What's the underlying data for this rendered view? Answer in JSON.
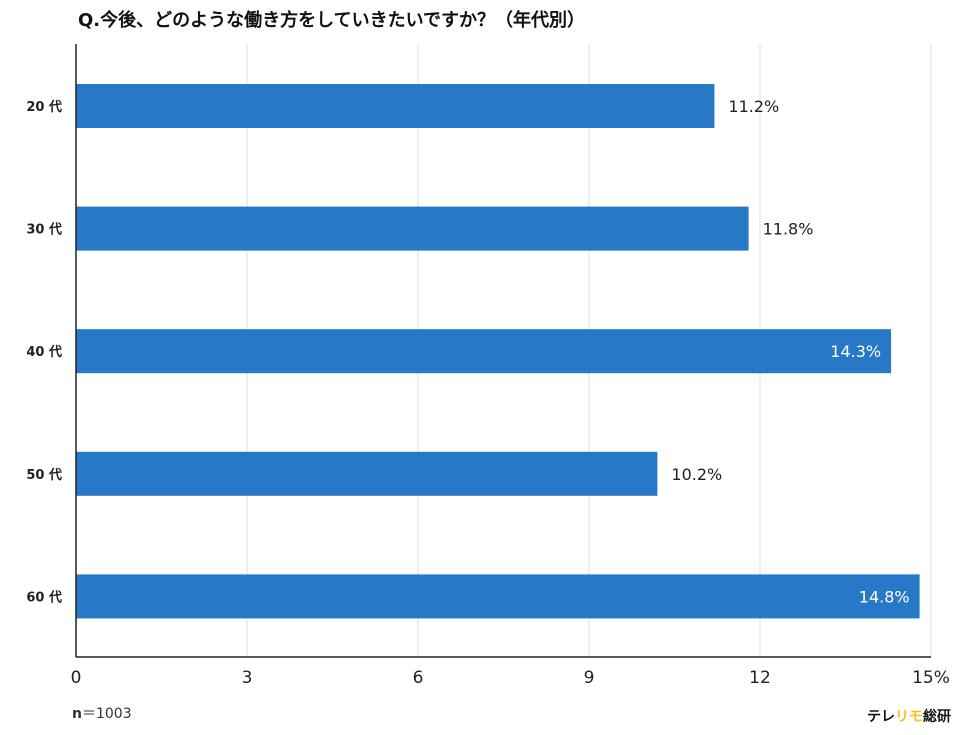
{
  "title": "Q.今後、どのような働き方をしていきたいですか？（年代別）",
  "chart_data": {
    "type": "bar",
    "orientation": "horizontal",
    "categories": [
      "20 代",
      "30 代",
      "40 代",
      "50 代",
      "60 代"
    ],
    "values": [
      11.2,
      11.8,
      14.3,
      10.2,
      14.8
    ],
    "value_labels": [
      "11.2%",
      "11.8%",
      "14.3%",
      "10.2%",
      "14.8%"
    ],
    "x_ticks": [
      "0",
      "3",
      "6",
      "9",
      "12",
      "15%"
    ],
    "xlim": [
      0,
      15
    ],
    "grid": true,
    "bar_color": "#2878c8"
  },
  "footer": {
    "sample_label": "n",
    "sample_value": "＝1003",
    "brand_prefix": "テレ",
    "brand_accent": "リモ",
    "brand_suffix": "総研"
  }
}
